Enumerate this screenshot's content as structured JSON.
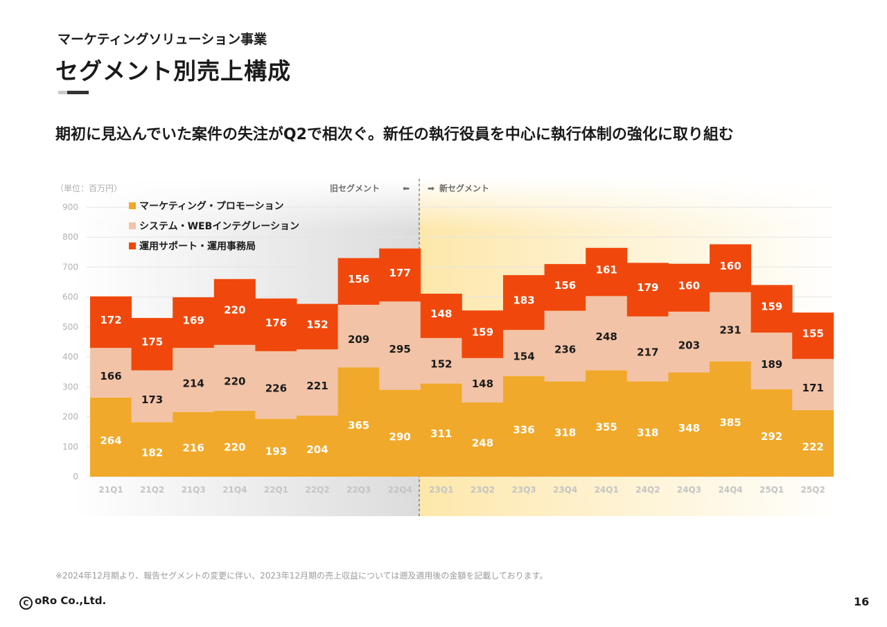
{
  "header": {
    "subtitle": "マーケティングソリューション事業",
    "title": "セグメント別売上構成",
    "headline": "期初に見込んでいた案件の失注がQ2で相次ぐ。新任の執行役員を中心に執行体制の強化に取り組む"
  },
  "chart_data": {
    "type": "bar",
    "stacked": true,
    "unit_label": "（単位：百万円）",
    "categories": [
      "21Q1",
      "21Q2",
      "21Q3",
      "21Q4",
      "22Q1",
      "22Q2",
      "22Q3",
      "22Q4",
      "23Q1",
      "23Q2",
      "23Q3",
      "23Q4",
      "24Q1",
      "24Q2",
      "24Q3",
      "24Q4",
      "25Q1",
      "25Q2"
    ],
    "series": [
      {
        "name": "マーケティング・プロモーション",
        "color": "#f0a92a",
        "label_color": "#ffffff",
        "values": [
          264,
          182,
          216,
          220,
          193,
          204,
          365,
          290,
          311,
          248,
          336,
          318,
          355,
          318,
          348,
          385,
          292,
          222
        ]
      },
      {
        "name": "システム・WEBインテグレーション",
        "color": "#f2c3a6",
        "label_color": "#1a1a1a",
        "values": [
          166,
          173,
          214,
          220,
          226,
          221,
          209,
          295,
          152,
          148,
          154,
          236,
          248,
          217,
          203,
          231,
          189,
          171
        ]
      },
      {
        "name": "運用サポート・運用事務局",
        "color": "#f0480c",
        "label_color": "#ffffff",
        "values": [
          172,
          175,
          169,
          220,
          176,
          152,
          156,
          177,
          148,
          159,
          183,
          156,
          161,
          179,
          160,
          160,
          159,
          155
        ]
      }
    ],
    "ylim": [
      0,
      900
    ],
    "yticks": [
      0,
      100,
      200,
      300,
      400,
      500,
      600,
      700,
      800,
      900
    ],
    "grid": true,
    "legend_position": "top-left",
    "annotations": {
      "old_segment": "旧セグメント",
      "old_arrow": "⬅",
      "new_segment": "新セグメント",
      "new_arrow": "➡"
    }
  },
  "footnote": "※2024年12月期より、報告セグメントの変更に伴い、2023年12月期の売上収益については遡及適用後の金額を記載しております。",
  "footer": {
    "logo_symbol": "C",
    "logo_text": "oRo Co.,Ltd.",
    "page_number": "16"
  }
}
